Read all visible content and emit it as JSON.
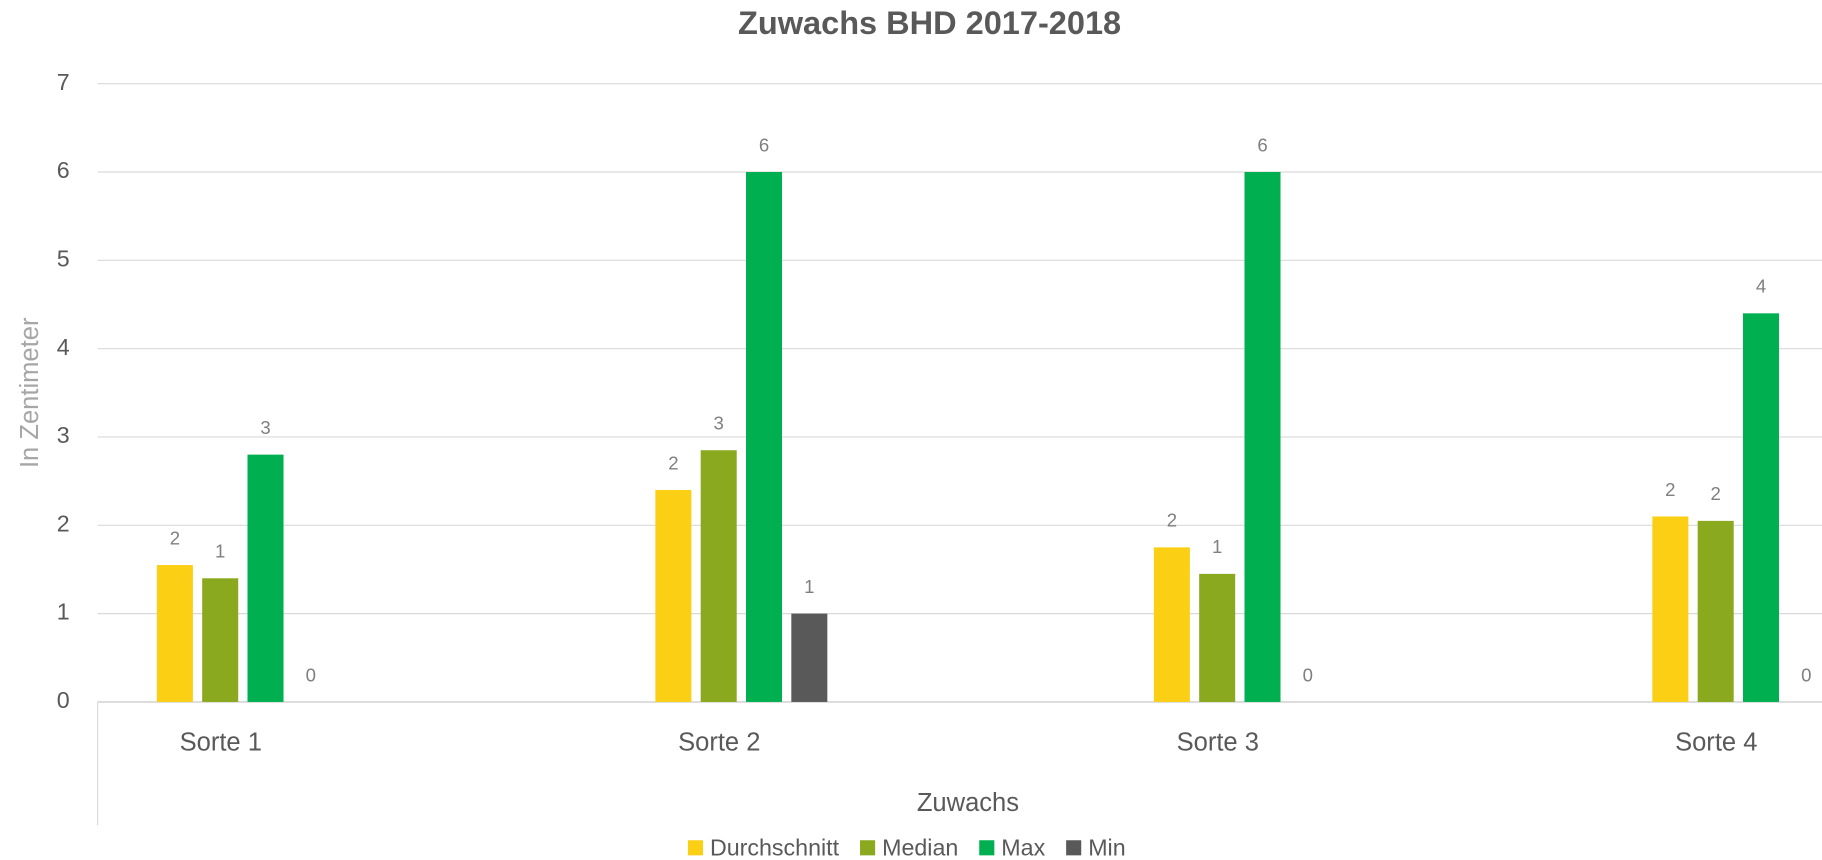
{
  "chart_data": {
    "type": "bar",
    "title": "Zuwachs BHD 2017-2018",
    "x_label": "Zuwachs",
    "y_label": "In Zentimeter",
    "categories": [
      "Sorte 1",
      "Sorte 2",
      "Sorte 3",
      "Sorte 4"
    ],
    "series": [
      {
        "name": "Durchschnitt",
        "color": "#facf14",
        "values": [
          1.55,
          2.4,
          1.75,
          2.1
        ],
        "value_labels": [
          "2",
          "2",
          "2",
          "2"
        ]
      },
      {
        "name": "Median",
        "color": "#8aa91e",
        "values": [
          1.4,
          2.85,
          1.45,
          2.05
        ],
        "value_labels": [
          "1",
          "3",
          "1",
          "2"
        ]
      },
      {
        "name": "Max",
        "color": "#00b050",
        "values": [
          2.8,
          6,
          6,
          4.4
        ],
        "value_labels": [
          "3",
          "6",
          "6",
          "4"
        ]
      },
      {
        "name": "Min",
        "color": "#595959",
        "values": [
          0,
          1,
          0,
          0
        ],
        "value_labels": [
          "0",
          "1",
          "0",
          "0"
        ]
      }
    ],
    "ylim": [
      0,
      7
    ],
    "yticks": [
      0,
      1,
      2,
      3,
      4,
      5,
      6,
      7
    ],
    "grid": true,
    "legend": "bottom"
  }
}
